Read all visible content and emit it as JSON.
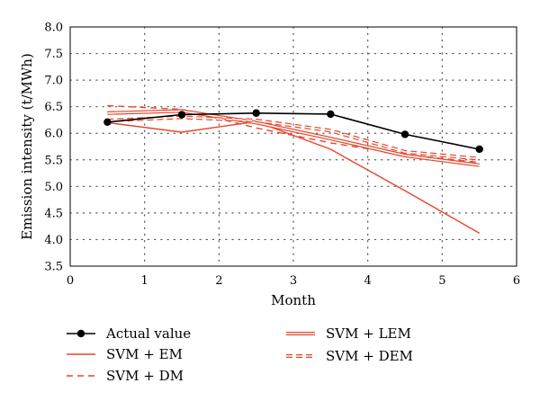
{
  "chart_data": {
    "type": "line",
    "title": "",
    "xlabel": "Month",
    "ylabel": "Emission intensity (t/MWh)",
    "xlim": [
      0,
      6
    ],
    "ylim": [
      3.5,
      8.0
    ],
    "x_ticks": [
      "0",
      "1",
      "2",
      "3",
      "4",
      "5",
      "6"
    ],
    "y_ticks": [
      "3.5",
      "4.0",
      "4.5",
      "5.0",
      "5.5",
      "6.0",
      "6.5",
      "7.0",
      "7.5",
      "8.0"
    ],
    "grid": true,
    "grid_style": "dotted",
    "legend_placement": "below",
    "series": [
      {
        "name": "Actual value",
        "style": "solid-markers",
        "color": "#000000",
        "x": [
          0.5,
          1.5,
          2.5,
          3.5,
          4.5,
          5.5
        ],
        "y": [
          6.21,
          6.35,
          6.38,
          6.36,
          5.98,
          5.7
        ]
      },
      {
        "name": "SVM + EM",
        "style": "solid",
        "color": "#e8452c",
        "x": [
          0.5,
          1.5,
          2.5,
          3.5,
          4.5,
          5.5
        ],
        "y": [
          6.2,
          6.02,
          6.22,
          5.7,
          4.92,
          4.12
        ]
      },
      {
        "name": "SVM + DM",
        "style": "dashed",
        "color": "#e8452c",
        "x": [
          0.5,
          1.5,
          2.5,
          3.5,
          4.5,
          5.5
        ],
        "y": [
          6.52,
          6.45,
          6.1,
          5.82,
          5.6,
          5.45
        ]
      },
      {
        "name": "SVM + LEM",
        "style": "double",
        "color": "#e8452c",
        "x": [
          0.5,
          1.5,
          2.5,
          3.5,
          4.5,
          5.5
        ],
        "y": [
          6.38,
          6.42,
          6.2,
          5.9,
          5.58,
          5.4
        ]
      },
      {
        "name": "SVM + DEM",
        "style": "double-dashed",
        "color": "#e8452c",
        "x": [
          0.5,
          1.5,
          2.5,
          3.5,
          4.5,
          5.5
        ],
        "y": [
          6.24,
          6.3,
          6.24,
          6.05,
          5.65,
          5.52
        ]
      }
    ]
  }
}
